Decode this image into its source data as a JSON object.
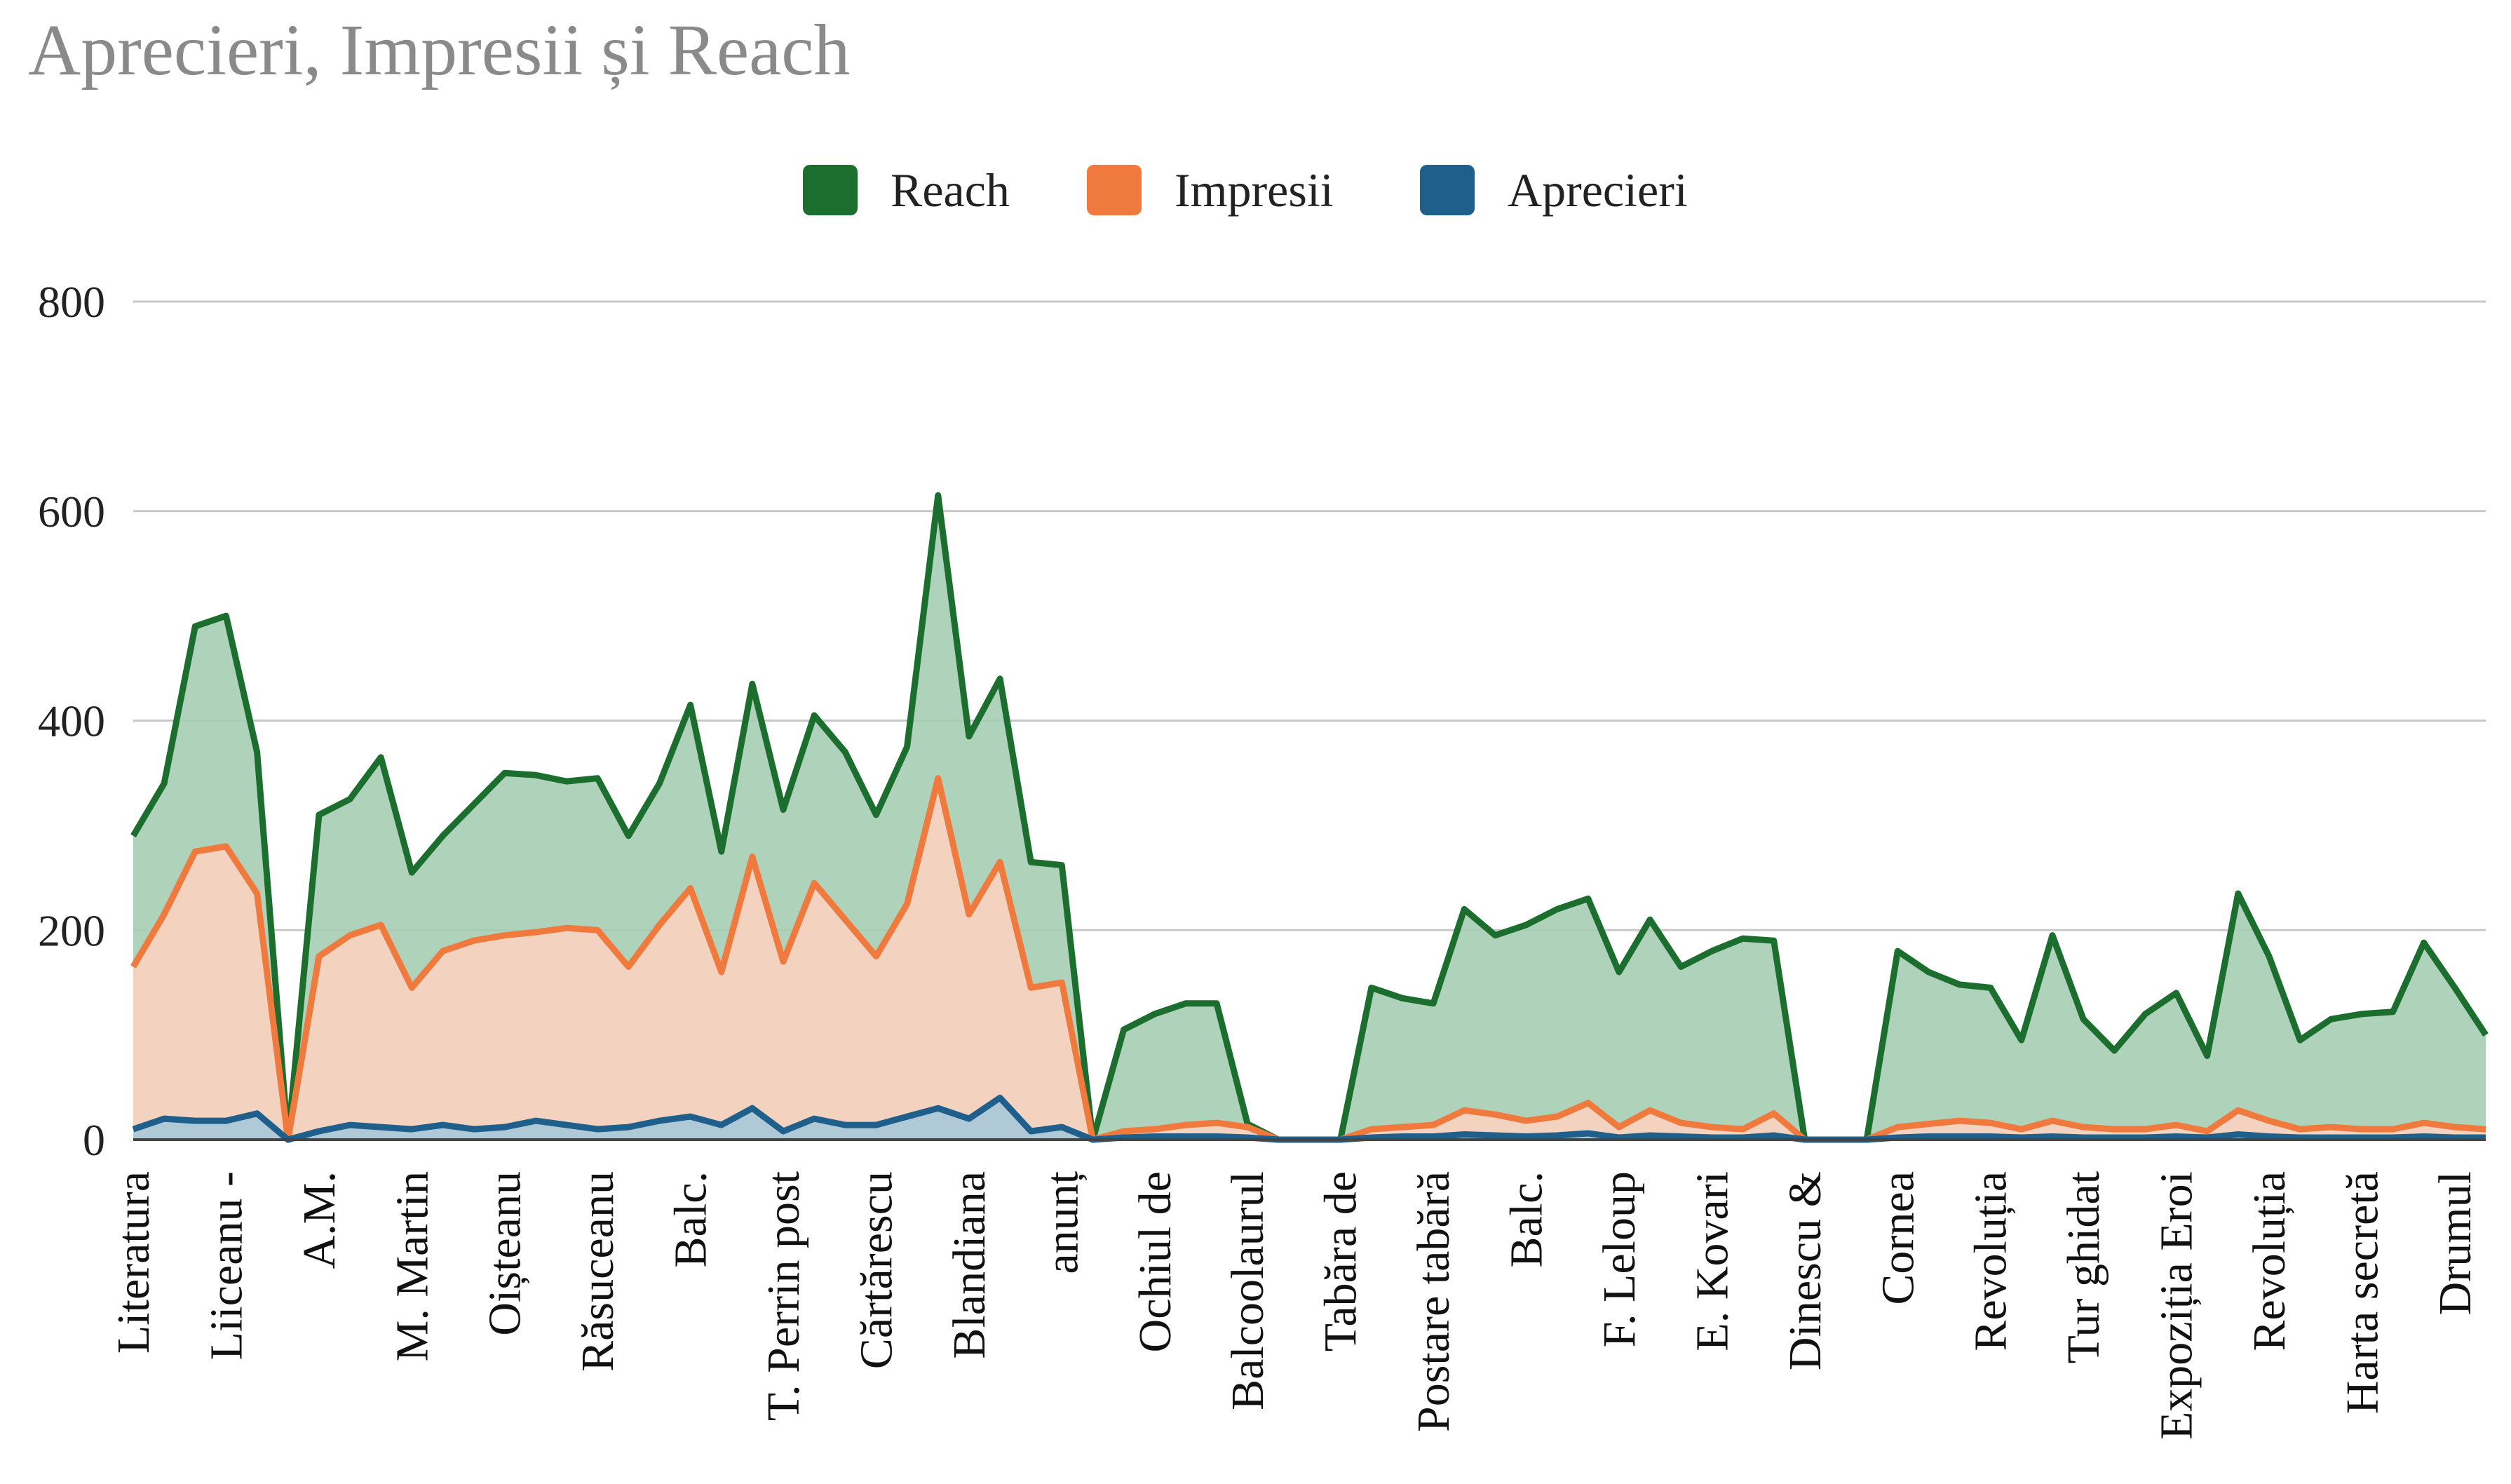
{
  "chart_data": {
    "type": "area",
    "title": "Aprecieri, Impresii și Reach",
    "xlabel": "",
    "ylabel": "",
    "ylim": [
      0,
      800
    ],
    "yticks": [
      0,
      200,
      400,
      600,
      800
    ],
    "grid": true,
    "legend_position": "top-center",
    "x_count": 77,
    "x_tick_labels": [
      {
        "index": 0,
        "label": "Literatura"
      },
      {
        "index": 3,
        "label": "Liiceanu -"
      },
      {
        "index": 6,
        "label": "A.M."
      },
      {
        "index": 9,
        "label": "M. Martin"
      },
      {
        "index": 12,
        "label": "Oișteanu"
      },
      {
        "index": 15,
        "label": "Răsuceanu"
      },
      {
        "index": 18,
        "label": "Balc."
      },
      {
        "index": 21,
        "label": "T. Perrin post"
      },
      {
        "index": 24,
        "label": "Cărtărescu"
      },
      {
        "index": 27,
        "label": "Blandiana"
      },
      {
        "index": 30,
        "label": "anunț"
      },
      {
        "index": 33,
        "label": "Ochiul de"
      },
      {
        "index": 36,
        "label": "Balcoolaurul"
      },
      {
        "index": 39,
        "label": "Tabăra de"
      },
      {
        "index": 42,
        "label": "Postare tabără"
      },
      {
        "index": 45,
        "label": "Balc."
      },
      {
        "index": 48,
        "label": "F. Leloup"
      },
      {
        "index": 51,
        "label": "E. Kovari"
      },
      {
        "index": 54,
        "label": "Dinescu &"
      },
      {
        "index": 57,
        "label": "Cornea"
      },
      {
        "index": 60,
        "label": "Revoluția"
      },
      {
        "index": 63,
        "label": "Tur ghidat"
      },
      {
        "index": 66,
        "label": "Expoziția Eroi"
      },
      {
        "index": 69,
        "label": "Revoluția"
      },
      {
        "index": 72,
        "label": "Harta secretă"
      },
      {
        "index": 75,
        "label": "Drumul"
      }
    ],
    "series": [
      {
        "name": "Reach",
        "color": "#1b6e2e",
        "fill": "#a6cdb2",
        "values": [
          290,
          340,
          490,
          500,
          370,
          0,
          310,
          325,
          365,
          255,
          290,
          320,
          350,
          348,
          342,
          345,
          290,
          340,
          415,
          275,
          435,
          315,
          405,
          370,
          310,
          375,
          615,
          385,
          440,
          265,
          262,
          0,
          105,
          120,
          130,
          130,
          15,
          0,
          0,
          0,
          145,
          135,
          130,
          220,
          195,
          205,
          220,
          230,
          160,
          210,
          165,
          180,
          192,
          190,
          0,
          0,
          0,
          180,
          160,
          148,
          145,
          95,
          195,
          115,
          85,
          120,
          140,
          80,
          235,
          175,
          95,
          115,
          120,
          122,
          188,
          145,
          100
        ]
      },
      {
        "name": "Impresii",
        "color": "#f07a3e",
        "fill": "#fbd3c0",
        "values": [
          165,
          215,
          275,
          280,
          235,
          0,
          175,
          195,
          205,
          145,
          180,
          190,
          195,
          198,
          202,
          200,
          165,
          205,
          240,
          160,
          270,
          170,
          245,
          210,
          175,
          225,
          345,
          215,
          265,
          145,
          150,
          0,
          8,
          10,
          14,
          16,
          12,
          0,
          0,
          0,
          10,
          12,
          14,
          28,
          24,
          18,
          22,
          35,
          12,
          28,
          16,
          12,
          10,
          25,
          0,
          0,
          0,
          12,
          15,
          18,
          16,
          10,
          18,
          12,
          10,
          10,
          14,
          8,
          28,
          18,
          10,
          12,
          10,
          10,
          16,
          12,
          10
        ]
      },
      {
        "name": "Aprecieri",
        "color": "#1f5f8b",
        "fill": "#a7c8d8",
        "values": [
          10,
          20,
          18,
          18,
          25,
          0,
          8,
          14,
          12,
          10,
          14,
          10,
          12,
          18,
          14,
          10,
          12,
          18,
          22,
          14,
          30,
          8,
          20,
          14,
          14,
          22,
          30,
          20,
          40,
          8,
          12,
          0,
          2,
          3,
          3,
          3,
          2,
          0,
          0,
          0,
          2,
          3,
          3,
          5,
          4,
          3,
          4,
          6,
          2,
          4,
          3,
          2,
          2,
          4,
          0,
          0,
          0,
          2,
          3,
          3,
          3,
          2,
          3,
          2,
          2,
          2,
          3,
          2,
          5,
          3,
          2,
          2,
          2,
          2,
          3,
          2,
          2
        ]
      }
    ]
  }
}
